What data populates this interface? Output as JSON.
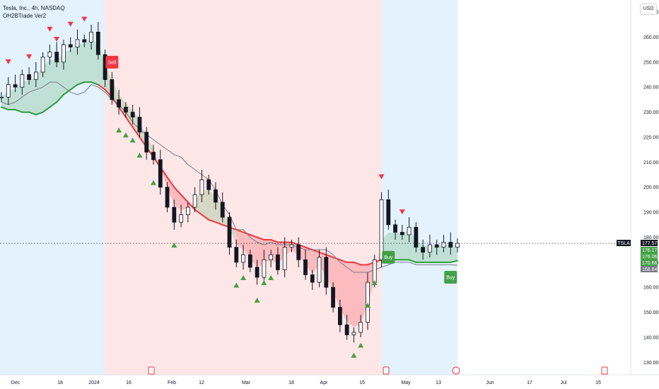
{
  "header": {
    "title": "Tesla, Inc., 4h, NASDAQ",
    "indicator": "OH2BTrade Ver2",
    "currency": "USD"
  },
  "colors": {
    "bull_zone": "#e3f2fd",
    "bear_zone": "#ffe7e7",
    "fast_ma": "#f23645",
    "slow_ma": "#2e9e3a",
    "trail": "#787b86",
    "sell": "#f23645",
    "buy": "#43a047",
    "candle": "#131722"
  },
  "chart_data": {
    "type": "line",
    "symbol": "TSLA",
    "last_price": "177.57",
    "ylim": [
      125,
      272
    ],
    "y_ticks": [
      "130.00",
      "140.00",
      "150.00",
      "160.00",
      "170.00",
      "180.00",
      "190.00",
      "200.00",
      "210.00",
      "220.00",
      "230.00",
      "240.00",
      "250.00",
      "260.00",
      "270.00"
    ],
    "x_ticks": [
      "Dec",
      "18",
      "2024",
      "16",
      "Feb",
      "12",
      "Mar",
      "18",
      "Apr",
      "15",
      "May",
      "13",
      "Jun",
      "17",
      "Jul",
      "15"
    ],
    "price_tags": [
      {
        "label": "TSLA",
        "value": "177.57",
        "color": "#131722"
      },
      {
        "label": "",
        "value": "176.17",
        "color": "#43a047"
      },
      {
        "label": "",
        "value": "176.06",
        "color": "#43a047"
      },
      {
        "label": "",
        "value": "170.66",
        "color": "#43a047"
      },
      {
        "label": "",
        "value": "168.84",
        "color": "#787b86"
      }
    ],
    "signals": [
      {
        "type": "Sell",
        "label": "Sell",
        "price": 250
      },
      {
        "type": "Buy",
        "label": "Buy",
        "price": 172
      },
      {
        "type": "Buy",
        "label": "Buy",
        "price": 164
      }
    ],
    "zones": [
      {
        "trend": "bull",
        "from": "Nov 28",
        "to": "Jan 09"
      },
      {
        "trend": "bear",
        "from": "Jan 09",
        "to": "Apr 29"
      },
      {
        "trend": "bull",
        "from": "Apr 29",
        "to": "May 20"
      }
    ],
    "series": [
      {
        "values": [
          236,
          241,
          240,
          245,
          243,
          246,
          252,
          254,
          250,
          257,
          256,
          259,
          258,
          262,
          253,
          243,
          235,
          232,
          230,
          228,
          222,
          214,
          211,
          200,
          192,
          186,
          189,
          192,
          197,
          203,
          199,
          194,
          188,
          176,
          170,
          173,
          168,
          164,
          171,
          173,
          167,
          176,
          177,
          171,
          165,
          162,
          172,
          160,
          152,
          145,
          141,
          142,
          146,
          162,
          171,
          195,
          185,
          182,
          181,
          184,
          176,
          174,
          177,
          176,
          178,
          176,
          177.57
        ]
      },
      {
        "values": [
          232,
          231,
          231,
          230,
          230,
          229,
          230,
          232,
          234,
          237,
          239,
          241,
          242,
          242,
          241,
          239,
          236,
          232,
          228,
          224,
          220,
          216,
          212,
          208,
          204,
          200,
          197,
          194,
          191,
          189,
          187,
          186,
          185,
          184,
          183,
          182,
          181,
          180,
          179,
          179,
          178,
          178,
          178,
          177,
          176,
          175,
          174,
          173,
          172,
          171,
          170,
          170,
          169,
          169,
          170,
          171,
          171,
          171,
          171,
          171,
          170,
          170,
          170,
          170,
          170,
          170,
          170.66
        ]
      },
      {
        "values": [
          234,
          233,
          234,
          236,
          238,
          239,
          240,
          242,
          242,
          240,
          238,
          237,
          238,
          241,
          240,
          238,
          235,
          233,
          230,
          226,
          223,
          221,
          219,
          217,
          215,
          213,
          212,
          209,
          207,
          205,
          203,
          199,
          193,
          189,
          183,
          183,
          180,
          178,
          177,
          178,
          177,
          177,
          177,
          176,
          175,
          175,
          175,
          175,
          173,
          170,
          168,
          166,
          166,
          166,
          167,
          168,
          169,
          170,
          170,
          170,
          169,
          169,
          169,
          169,
          169,
          169,
          168.84
        ]
      }
    ]
  }
}
